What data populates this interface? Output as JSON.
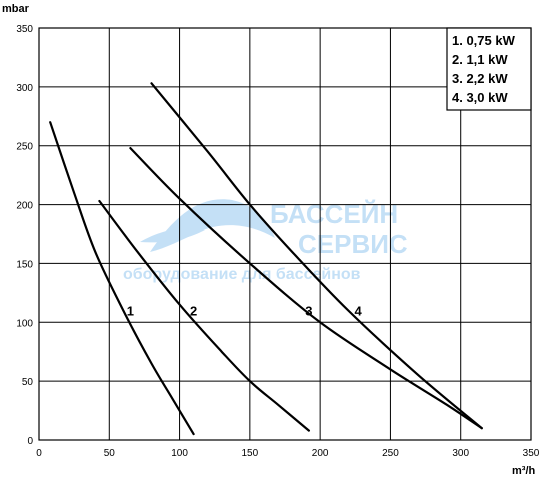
{
  "chart_data": {
    "type": "line",
    "xlabel": "m³/h",
    "ylabel": "mbar",
    "xlim": [
      0,
      350
    ],
    "ylim": [
      0,
      350
    ],
    "x_ticks": [
      "0",
      "50",
      "100",
      "150",
      "200",
      "250",
      "300",
      "350"
    ],
    "y_ticks": [
      "0",
      "50",
      "100",
      "150",
      "200",
      "250",
      "300",
      "350"
    ],
    "grid": true,
    "legend_position": "top-right",
    "legend": [
      "1. 0,75 kW",
      "2. 1,1 kW",
      "3. 2,2 kW",
      "4. 3,0 kW"
    ],
    "series": [
      {
        "name": "1",
        "x": [
          8,
          25,
          40,
          60,
          80,
          95,
          110
        ],
        "y": [
          270,
          210,
          160,
          110,
          65,
          35,
          5
        ]
      },
      {
        "name": "2",
        "x": [
          43,
          70,
          100,
          130,
          150,
          170,
          192
        ],
        "y": [
          203,
          160,
          115,
          75,
          50,
          30,
          8
        ]
      },
      {
        "name": "3",
        "x": [
          65,
          100,
          150,
          200,
          250,
          290,
          315
        ],
        "y": [
          248,
          205,
          150,
          100,
          60,
          30,
          10
        ]
      },
      {
        "name": "4",
        "x": [
          80,
          120,
          150,
          180,
          220,
          270,
          315
        ],
        "y": [
          303,
          245,
          200,
          160,
          110,
          55,
          10
        ]
      }
    ],
    "curve_labels": [
      "1",
      "2",
      "3",
      "4"
    ],
    "watermark": {
      "line1": "БАССЕЙН",
      "line2": "СЕРВИС",
      "line3": "оборудование для бассейнов",
      "color": "#5aa7e6"
    }
  }
}
